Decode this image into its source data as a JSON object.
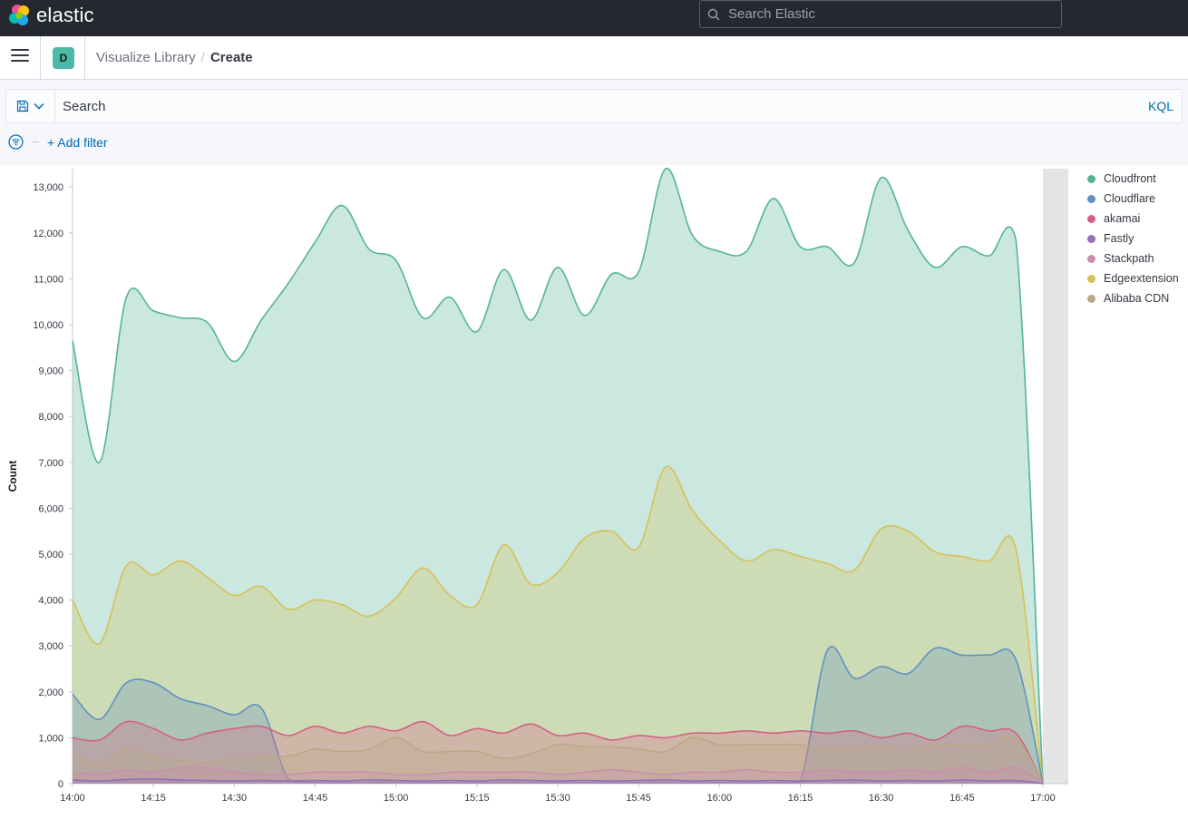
{
  "header": {
    "logo_text": "elastic",
    "search_placeholder": "Search Elastic"
  },
  "nav": {
    "space_initial": "D",
    "breadcrumbs": [
      "Visualize Library",
      "Create"
    ],
    "breadcrumb_separator": "/"
  },
  "query": {
    "placeholder": "Search",
    "language": "KQL",
    "add_filter_label": "+ Add filter"
  },
  "legend": [
    {
      "name": "Cloudfront",
      "color": "#54b399"
    },
    {
      "name": "Cloudflare",
      "color": "#6092c0"
    },
    {
      "name": "akamai",
      "color": "#d36086"
    },
    {
      "name": "Fastly",
      "color": "#9170b8"
    },
    {
      "name": "Stackpath",
      "color": "#ca8eae"
    },
    {
      "name": "Edgeextension",
      "color": "#d6bf57"
    },
    {
      "name": "Alibaba CDN",
      "color": "#b9a888"
    }
  ],
  "chart_data": {
    "type": "area",
    "ylabel": "Count",
    "xlabel": "",
    "ylim": [
      0,
      13400
    ],
    "y_ticks": [
      0,
      1000,
      2000,
      3000,
      4000,
      5000,
      6000,
      7000,
      8000,
      9000,
      10000,
      11000,
      12000,
      13000
    ],
    "y_tick_labels": [
      "0",
      "1,000",
      "2,000",
      "3,000",
      "4,000",
      "5,000",
      "6,000",
      "7,000",
      "8,000",
      "9,000",
      "10,000",
      "11,000",
      "12,000",
      "13,000"
    ],
    "x_ticks": [
      "14:00",
      "14:15",
      "14:30",
      "14:45",
      "15:00",
      "15:15",
      "15:30",
      "15:45",
      "16:00",
      "16:15",
      "16:30",
      "16:45",
      "17:00"
    ],
    "x_times": [
      "14:00",
      "14:05",
      "14:10",
      "14:15",
      "14:20",
      "14:25",
      "14:30",
      "14:35",
      "14:40",
      "14:45",
      "14:50",
      "14:55",
      "15:00",
      "15:05",
      "15:10",
      "15:15",
      "15:20",
      "15:25",
      "15:30",
      "15:35",
      "15:40",
      "15:45",
      "15:50",
      "15:55",
      "16:00",
      "16:05",
      "16:10",
      "16:15",
      "16:20",
      "16:25",
      "16:30",
      "16:35",
      "16:40",
      "16:45",
      "16:50",
      "16:55",
      "17:00"
    ],
    "legend_position": "right",
    "series": [
      {
        "name": "Cloudfront",
        "values": [
          9650,
          7000,
          10600,
          10300,
          10150,
          10050,
          9200,
          10100,
          10900,
          11800,
          12600,
          11650,
          11400,
          10150,
          10600,
          9850,
          11200,
          10100,
          11250,
          10200,
          11100,
          11150,
          13400,
          11950,
          11600,
          11600,
          12750,
          11700,
          11700,
          11350,
          13200,
          12050,
          11250,
          11700,
          11500,
          11850,
          0
        ]
      },
      {
        "name": "Cloudflare",
        "values": [
          1950,
          1400,
          2200,
          2200,
          1850,
          1700,
          1500,
          1650,
          100,
          30,
          20,
          20,
          20,
          20,
          20,
          20,
          20,
          20,
          20,
          20,
          20,
          20,
          20,
          20,
          20,
          20,
          20,
          50,
          2900,
          2300,
          2550,
          2400,
          2950,
          2800,
          2800,
          2700,
          0
        ]
      },
      {
        "name": "akamai",
        "values": [
          1000,
          950,
          1350,
          1200,
          950,
          1100,
          1200,
          1250,
          1050,
          1250,
          1100,
          1250,
          1150,
          1350,
          1050,
          1200,
          1100,
          1300,
          1050,
          1100,
          950,
          1050,
          1000,
          1100,
          1100,
          1150,
          1100,
          1150,
          1100,
          1150,
          1000,
          1100,
          950,
          1250,
          1150,
          1100,
          0
        ]
      },
      {
        "name": "Fastly",
        "values": [
          80,
          60,
          90,
          100,
          80,
          70,
          60,
          70,
          60,
          70,
          60,
          80,
          70,
          60,
          70,
          60,
          80,
          70,
          60,
          70,
          60,
          70,
          80,
          60,
          70,
          60,
          70,
          60,
          70,
          80,
          60,
          70,
          60,
          80,
          60,
          70,
          0
        ]
      },
      {
        "name": "Stackpath",
        "values": [
          250,
          200,
          300,
          250,
          350,
          350,
          250,
          200,
          200,
          250,
          250,
          250,
          200,
          200,
          250,
          250,
          250,
          250,
          200,
          250,
          300,
          250,
          200,
          250,
          250,
          300,
          250,
          250,
          300,
          250,
          250,
          300,
          250,
          350,
          250,
          350,
          0
        ]
      },
      {
        "name": "Edgeextension",
        "values": [
          4000,
          3050,
          4750,
          4550,
          4850,
          4500,
          4100,
          4300,
          3800,
          4000,
          3900,
          3650,
          4050,
          4700,
          4100,
          3900,
          5200,
          4350,
          4600,
          5350,
          5500,
          5150,
          6900,
          5950,
          5300,
          4850,
          5100,
          4950,
          4800,
          4650,
          5550,
          5500,
          5050,
          4950,
          4850,
          5100,
          0
        ]
      },
      {
        "name": "Alibaba CDN",
        "values": [
          650,
          450,
          750,
          600,
          500,
          450,
          550,
          600,
          600,
          750,
          700,
          750,
          1000,
          700,
          700,
          700,
          550,
          650,
          850,
          800,
          800,
          750,
          700,
          1000,
          850,
          850,
          850,
          850,
          750,
          800,
          800,
          750,
          850,
          850,
          850,
          1000,
          0
        ]
      }
    ]
  }
}
